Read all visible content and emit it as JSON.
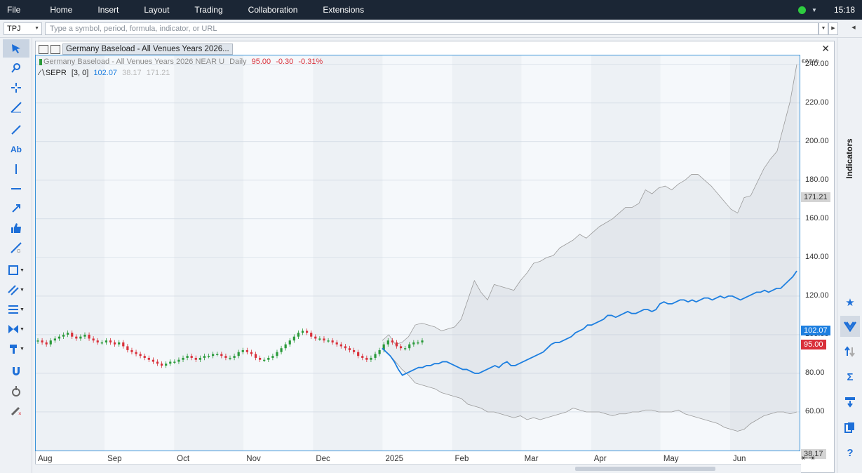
{
  "menu": {
    "items": [
      "File",
      "Home",
      "Insert",
      "Layout",
      "Trading",
      "Collaboration",
      "Extensions"
    ],
    "clock": "15:18",
    "status_color": "#2ecc40"
  },
  "command": {
    "symbol": "TPJ",
    "placeholder": "Type a symbol, period, formula, indicator, or URL"
  },
  "window": {
    "title": "Germany Baseload - All Venues Years 2026..."
  },
  "legend": {
    "line1": {
      "name": "Germany Baseload - All Venues Years 2026 NEAR U",
      "period": "Daily",
      "last": "95.00",
      "change": "-0.30",
      "pct": "-0.31%"
    },
    "line2": {
      "name": "SEPR",
      "params": "[3, 0]",
      "v1": "102.07",
      "v2": "38.17",
      "v3": "171.21"
    }
  },
  "right_panel": {
    "tab": "Indicators",
    "icons": [
      "star-icon",
      "sepr-icon",
      "transfer-icon",
      "sigma-icon",
      "download-icon",
      "copy-icon",
      "help-icon"
    ]
  },
  "left_tools": [
    "cursor-icon",
    "zoom-icon",
    "crosshair-icon",
    "trendline-tool-icon",
    "line-icon",
    "text-icon",
    "vertical-line-icon",
    "horizontal-line-icon",
    "arrow-icon",
    "thumbs-up-icon",
    "gann-icon",
    "rectangle-icon",
    "channel-icon",
    "fibonacci-icon",
    "pattern-icon",
    "hammer-icon",
    "magnet-icon",
    "pointer-hand-icon",
    "eraser-icon"
  ],
  "chart_data": {
    "type": "line",
    "unit_label": "€/MWh",
    "ylim": [
      40,
      245
    ],
    "y_ticks": [
      240,
      220,
      200,
      180,
      160,
      140,
      120,
      100,
      80,
      60
    ],
    "y_tick_labels": [
      "240.00",
      "220.00",
      "200.00",
      "180.00",
      "160.00",
      "140.00",
      "120.00",
      "100.00",
      "80.00",
      "60.00"
    ],
    "x_labels": [
      "Aug",
      "Sep",
      "Oct",
      "Nov",
      "Dec",
      "2025",
      "Feb",
      "Mar",
      "Apr",
      "May",
      "Jun"
    ],
    "badges": {
      "upper": "171.21",
      "mid": "102.07",
      "last": "95.00",
      "lower": "38.17"
    },
    "colors": {
      "up": "#2a9a3a",
      "down": "#d9303a",
      "projection": "#1d7fe0",
      "band": "#9a9a9a"
    },
    "candles": [
      97,
      96,
      95,
      97,
      98,
      99,
      100,
      101,
      99,
      98,
      99,
      100,
      98,
      97,
      96,
      96,
      97,
      96,
      95,
      96,
      94,
      92,
      91,
      90,
      89,
      88,
      87,
      86,
      85,
      84,
      85,
      86,
      86,
      87,
      88,
      89,
      88,
      87,
      88,
      89,
      89,
      90,
      90,
      89,
      88,
      88,
      89,
      91,
      92,
      91,
      90,
      88,
      87,
      87,
      88,
      89,
      91,
      93,
      95,
      97,
      99,
      101,
      102,
      101,
      99,
      98,
      98,
      97,
      97,
      96,
      95,
      94,
      93,
      92,
      91,
      89,
      88,
      87,
      88,
      90,
      92,
      95,
      97,
      96,
      94,
      93,
      93,
      95,
      96,
      96,
      97
    ],
    "projection": [
      93,
      91,
      89,
      86,
      82,
      79,
      80,
      81,
      82,
      83,
      83,
      84,
      84,
      85,
      85,
      86,
      86,
      85,
      84,
      83,
      82,
      82,
      81,
      80,
      80,
      81,
      82,
      83,
      84,
      83,
      85,
      86,
      84,
      84,
      85,
      86,
      87,
      88,
      89,
      90,
      91,
      93,
      95,
      96,
      96,
      97,
      98,
      99,
      101,
      102,
      103,
      105,
      105,
      106,
      107,
      108,
      110,
      110,
      109,
      110,
      111,
      112,
      111,
      111,
      112,
      113,
      113,
      112,
      113,
      116,
      117,
      116,
      116,
      117,
      118,
      118,
      117,
      118,
      117,
      118,
      119,
      119,
      118,
      119,
      120,
      119,
      120,
      120,
      119,
      118,
      119,
      120,
      121,
      122,
      122,
      123,
      122,
      123,
      124,
      124,
      126,
      128,
      130,
      133
    ],
    "upper_band": [
      97,
      100,
      95,
      96,
      99,
      105,
      106,
      105,
      104,
      102,
      103,
      104,
      108,
      118,
      128,
      122,
      118,
      126,
      125,
      124,
      123,
      128,
      132,
      137,
      138,
      140,
      141,
      145,
      147,
      149,
      152,
      150,
      153,
      156,
      158,
      160,
      163,
      166,
      166,
      168,
      175,
      173,
      176,
      177,
      175,
      178,
      180,
      183,
      183,
      180,
      177,
      173,
      169,
      165,
      163,
      171,
      172,
      179,
      186,
      191,
      195,
      208,
      221,
      240
    ],
    "lower_band": [
      93,
      90,
      86,
      82,
      79,
      75,
      74,
      73,
      72,
      70,
      69,
      68,
      67,
      64,
      63,
      62,
      60,
      60,
      59,
      58,
      57,
      58,
      56,
      57,
      56,
      57,
      58,
      59,
      60,
      62,
      61,
      60,
      60,
      60,
      59,
      58,
      59,
      59,
      60,
      60,
      61,
      61,
      60,
      60,
      60,
      61,
      59,
      58,
      57,
      56,
      55,
      54,
      52,
      51,
      50,
      51,
      54,
      56,
      58,
      59,
      60,
      60,
      59,
      60
    ]
  }
}
